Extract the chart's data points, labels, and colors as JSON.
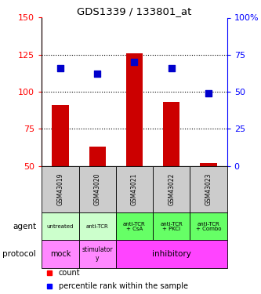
{
  "title": "GDS1339 / 133801_at",
  "samples": [
    "GSM43019",
    "GSM43020",
    "GSM43021",
    "GSM43022",
    "GSM43023"
  ],
  "count_values": [
    91,
    63,
    126,
    93,
    52
  ],
  "count_bottom": [
    50,
    50,
    50,
    50,
    50
  ],
  "percentile_values": [
    66,
    62,
    70,
    66,
    49
  ],
  "ylim_left": [
    50,
    150
  ],
  "ylim_right": [
    0,
    100
  ],
  "yticks_left": [
    50,
    75,
    100,
    125,
    150
  ],
  "yticks_right": [
    0,
    25,
    50,
    75,
    100
  ],
  "ytick_labels_left": [
    "50",
    "75",
    "100",
    "125",
    "150"
  ],
  "ytick_labels_right": [
    "0",
    "25",
    "50",
    "75",
    "100%"
  ],
  "agent_labels": [
    "untreated",
    "anti-TCR",
    "anti-TCR\n+ CsA",
    "anti-TCR\n+ PKCi",
    "anti-TCR\n+ Combo"
  ],
  "agent_color_light": "#ccffcc",
  "agent_color_bright": "#66ff66",
  "protocol_mock_color": "#ff88ff",
  "protocol_stim_color": "#ff88ff",
  "protocol_inhib_color": "#ff44ff",
  "bar_color": "#cc0000",
  "dot_color": "#0000cc",
  "bg_color": "#ffffff",
  "sample_bg": "#cccccc"
}
